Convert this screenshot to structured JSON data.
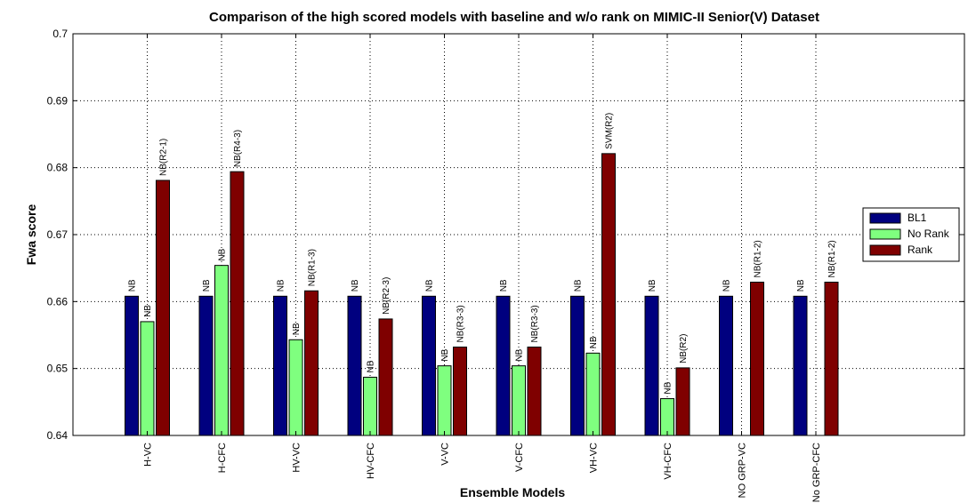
{
  "chart_data": {
    "type": "bar",
    "title": "Comparison of the high scored models with baseline and w/o rank on MIMIC-II Senior(V) Dataset",
    "xlabel": "Ensemble Models",
    "ylabel": "Fwa score",
    "ylim": [
      0.64,
      0.7
    ],
    "yticks": [
      0.64,
      0.65,
      0.66,
      0.67,
      0.68,
      0.69,
      0.7
    ],
    "ytick_labels": [
      "0.64",
      "0.65",
      "0.66",
      "0.67",
      "0.68",
      "0.69",
      "0.7"
    ],
    "grid": true,
    "legend_position": "right",
    "categories": [
      "H-VC",
      "H-CFC",
      "HV-VC",
      "HV-CFC",
      "V-VC",
      "V-CFC",
      "VH-VC",
      "VH-CFC",
      "NO GRP-VC",
      "No GRP-CFC"
    ],
    "series": [
      {
        "name": "BL1",
        "color": "#00007f",
        "values": [
          0.6608,
          0.6608,
          0.6608,
          0.6608,
          0.6608,
          0.6608,
          0.6608,
          0.6608,
          0.6608,
          0.6608
        ],
        "labels": [
          "NB",
          "NB",
          "NB",
          "NB",
          "NB",
          "NB",
          "NB",
          "NB",
          "NB",
          "NB"
        ]
      },
      {
        "name": "No Rank",
        "color": "#7fff7f",
        "values": [
          0.657,
          0.6654,
          0.6543,
          0.6487,
          0.6504,
          0.6504,
          0.6523,
          0.6455,
          null,
          null
        ],
        "labels": [
          "NB",
          "NB",
          "NB",
          "NB",
          "NB",
          "NB",
          "NB",
          "NB",
          "",
          ""
        ]
      },
      {
        "name": "Rank",
        "color": "#7f0000",
        "values": [
          0.6781,
          0.6794,
          0.6616,
          0.6574,
          0.6532,
          0.6532,
          0.6821,
          0.6501,
          0.6629,
          0.6629
        ],
        "labels": [
          "NB(R2-1)",
          "NB(R4-3)",
          "NB(R1-3)",
          "NB(R2-3)",
          "NB(R3-3)",
          "NB(R3-3)",
          "SVM(R2)",
          "NB(R2)",
          "NB(R1-2)",
          "NB(R1-2)"
        ]
      }
    ]
  }
}
